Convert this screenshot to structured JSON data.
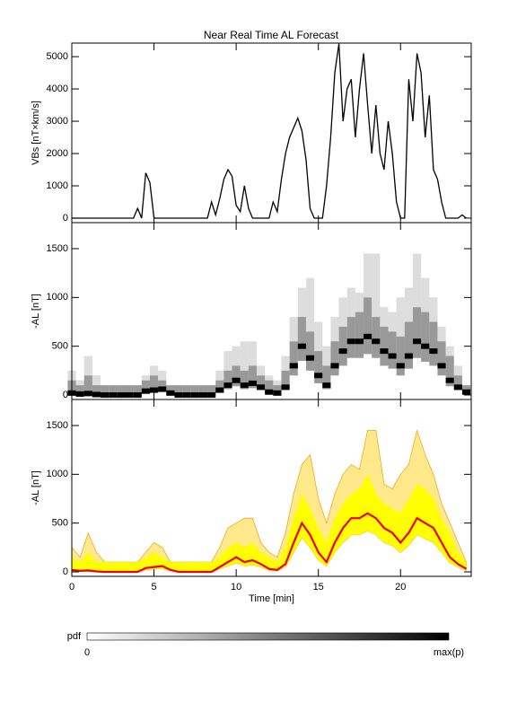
{
  "chart_data": [
    {
      "type": "line",
      "title": "Near Real Time AL Forecast",
      "ylabel": "VBs [nT×km/s]",
      "color": "#000000",
      "x": [
        0,
        0.25,
        0.5,
        0.75,
        1,
        1.25,
        1.5,
        1.75,
        2,
        2.25,
        2.5,
        2.75,
        3,
        3.25,
        3.5,
        3.75,
        4,
        4.25,
        4.5,
        4.75,
        5,
        5.25,
        5.5,
        5.75,
        6,
        6.25,
        6.5,
        6.75,
        7,
        7.25,
        7.5,
        7.75,
        8,
        8.25,
        8.5,
        8.75,
        9,
        9.25,
        9.5,
        9.75,
        10,
        10.25,
        10.5,
        10.75,
        11,
        11.25,
        11.5,
        11.75,
        12,
        12.25,
        12.5,
        12.75,
        13,
        13.25,
        13.5,
        13.75,
        14,
        14.25,
        14.5,
        14.75,
        15,
        15.25,
        15.5,
        15.75,
        16,
        16.25,
        16.5,
        16.75,
        17,
        17.25,
        17.5,
        17.75,
        18,
        18.25,
        18.5,
        18.75,
        19,
        19.25,
        19.5,
        19.75,
        20,
        20.25,
        20.5,
        20.75,
        21,
        21.25,
        21.5,
        21.75,
        22,
        22.25,
        22.5,
        22.75,
        23,
        23.25,
        23.5,
        23.75,
        24
      ],
      "values": [
        0,
        0,
        0,
        0,
        0,
        0,
        0,
        0,
        0,
        0,
        0,
        0,
        0,
        0,
        0,
        0,
        300,
        0,
        1400,
        1100,
        0,
        0,
        0,
        0,
        0,
        0,
        0,
        0,
        0,
        0,
        0,
        0,
        0,
        0,
        500,
        100,
        600,
        1200,
        1500,
        1300,
        400,
        200,
        1000,
        300,
        0,
        0,
        0,
        0,
        0,
        500,
        200,
        1200,
        2000,
        2500,
        2800,
        3100,
        2700,
        1800,
        300,
        0,
        0,
        0,
        1000,
        2500,
        4500,
        5400,
        3000,
        4000,
        4300,
        2500,
        4000,
        5100,
        3500,
        2000,
        3500,
        2000,
        1500,
        3000,
        2000,
        500,
        0,
        0,
        4300,
        3000,
        5100,
        4500,
        2500,
        3800,
        1500,
        1200,
        500,
        0,
        0,
        0,
        0,
        100,
        0
      ],
      "xlim": [
        0,
        24.3
      ],
      "ylim": [
        -140,
        5420
      ],
      "yticks": [
        0,
        1000,
        2000,
        3000,
        4000,
        5000
      ]
    },
    {
      "type": "heatmap",
      "ylabel": "-AL [nT]",
      "x": [
        0,
        0.5,
        1,
        1.5,
        2,
        2.5,
        3,
        3.5,
        4,
        4.5,
        5,
        5.5,
        6,
        6.5,
        7,
        7.5,
        8,
        8.5,
        9,
        9.5,
        10,
        10.5,
        11,
        11.5,
        12,
        12.5,
        13,
        13.5,
        14,
        14.5,
        15,
        15.5,
        16,
        16.5,
        17,
        17.5,
        18,
        18.5,
        19,
        19.5,
        20,
        20.5,
        21,
        21.5,
        22,
        22.5,
        23,
        23.5,
        24
      ],
      "lower": [
        10,
        5,
        5,
        0,
        0,
        0,
        0,
        0,
        0,
        20,
        30,
        30,
        10,
        0,
        0,
        0,
        0,
        0,
        30,
        60,
        90,
        60,
        70,
        50,
        15,
        10,
        50,
        200,
        350,
        250,
        120,
        60,
        200,
        300,
        380,
        380,
        420,
        380,
        300,
        270,
        200,
        270,
        380,
        340,
        300,
        200,
        90,
        50,
        15
      ],
      "median": [
        20,
        10,
        15,
        5,
        0,
        0,
        0,
        0,
        0,
        40,
        50,
        60,
        20,
        0,
        0,
        0,
        0,
        0,
        50,
        100,
        150,
        100,
        120,
        80,
        30,
        20,
        80,
        300,
        500,
        380,
        200,
        100,
        300,
        450,
        550,
        550,
        600,
        550,
        450,
        400,
        300,
        400,
        550,
        500,
        450,
        300,
        150,
        80,
        30
      ],
      "upper": [
        150,
        100,
        200,
        100,
        100,
        100,
        100,
        100,
        100,
        150,
        200,
        150,
        100,
        100,
        100,
        100,
        100,
        100,
        150,
        250,
        300,
        250,
        300,
        200,
        150,
        100,
        250,
        550,
        800,
        650,
        450,
        300,
        550,
        700,
        800,
        850,
        1000,
        800,
        700,
        650,
        600,
        750,
        900,
        850,
        750,
        550,
        400,
        200,
        100
      ],
      "max": [
        250,
        150,
        400,
        200,
        100,
        100,
        100,
        100,
        100,
        200,
        300,
        250,
        100,
        100,
        100,
        100,
        100,
        100,
        250,
        450,
        500,
        550,
        550,
        300,
        200,
        150,
        400,
        800,
        1100,
        1200,
        750,
        500,
        800,
        1000,
        1100,
        1050,
        1450,
        1450,
        900,
        850,
        1000,
        1100,
        1450,
        1200,
        1000,
        700,
        500,
        300,
        100
      ],
      "xlim": [
        0,
        24.3
      ],
      "ylim": [
        -46,
        1767
      ],
      "yticks": [
        0,
        500,
        1000,
        1500
      ],
      "colorbar": {
        "label": "pdf",
        "min_label": "0",
        "max_label": "max(p)"
      }
    },
    {
      "type": "band",
      "ylabel": "-AL [nT]",
      "xlabel": "Time [min]",
      "x": [
        0,
        0.5,
        1,
        1.5,
        2,
        2.5,
        3,
        3.5,
        4,
        4.5,
        5,
        5.5,
        6,
        6.5,
        7,
        7.5,
        8,
        8.5,
        9,
        9.5,
        10,
        10.5,
        11,
        11.5,
        12,
        12.5,
        13,
        13.5,
        14,
        14.5,
        15,
        15.5,
        16,
        16.5,
        17,
        17.5,
        18,
        18.5,
        19,
        19.5,
        20,
        20.5,
        21,
        21.5,
        22,
        22.5,
        23,
        23.5,
        24
      ],
      "lower": [
        10,
        5,
        5,
        0,
        0,
        0,
        0,
        0,
        0,
        20,
        30,
        30,
        10,
        0,
        0,
        0,
        0,
        0,
        30,
        60,
        90,
        60,
        70,
        50,
        15,
        10,
        50,
        200,
        350,
        250,
        120,
        60,
        200,
        300,
        380,
        380,
        420,
        380,
        300,
        270,
        200,
        270,
        380,
        340,
        300,
        200,
        90,
        50,
        15
      ],
      "median": [
        20,
        10,
        15,
        5,
        0,
        0,
        0,
        0,
        0,
        40,
        50,
        60,
        20,
        0,
        0,
        0,
        0,
        0,
        50,
        100,
        150,
        100,
        120,
        80,
        30,
        20,
        80,
        300,
        500,
        380,
        200,
        100,
        300,
        450,
        550,
        550,
        600,
        550,
        450,
        400,
        300,
        400,
        550,
        500,
        450,
        300,
        150,
        80,
        30
      ],
      "upper": [
        150,
        100,
        200,
        100,
        100,
        100,
        100,
        100,
        100,
        150,
        200,
        150,
        100,
        100,
        100,
        100,
        100,
        100,
        150,
        250,
        300,
        250,
        300,
        200,
        150,
        100,
        250,
        550,
        800,
        650,
        450,
        300,
        550,
        700,
        800,
        850,
        1000,
        800,
        700,
        650,
        600,
        750,
        900,
        850,
        750,
        550,
        400,
        200,
        100
      ],
      "max": [
        250,
        150,
        400,
        200,
        100,
        100,
        100,
        100,
        100,
        200,
        300,
        250,
        100,
        100,
        100,
        100,
        100,
        100,
        250,
        450,
        500,
        550,
        550,
        300,
        200,
        150,
        400,
        800,
        1100,
        1200,
        750,
        500,
        800,
        1000,
        1100,
        1050,
        1450,
        1450,
        900,
        850,
        1000,
        1100,
        1450,
        1200,
        1000,
        700,
        500,
        300,
        100
      ],
      "colors": {
        "max": "#ffe98a",
        "edge": "#f5a623",
        "band": "#ffff00",
        "median": "#ee0000"
      },
      "xlim": [
        0,
        24.3
      ],
      "ylim": [
        -46,
        1767
      ],
      "yticks": [
        0,
        500,
        1000,
        1500
      ],
      "xticks": [
        0,
        5,
        10,
        15,
        20
      ]
    }
  ]
}
